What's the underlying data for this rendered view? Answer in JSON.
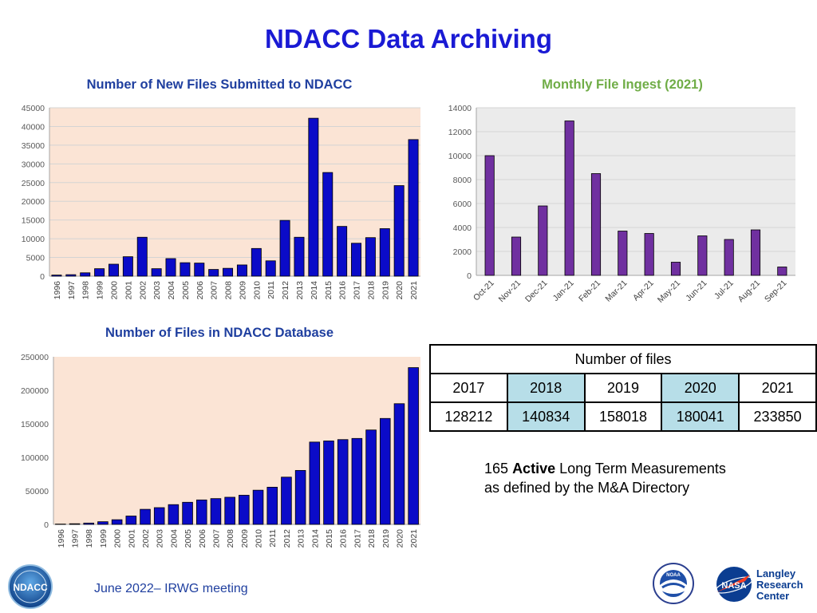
{
  "page": {
    "title": "NDACC Data Archiving"
  },
  "chart_data": [
    {
      "type": "bar",
      "title": "Number of New Files Submitted to NDACC",
      "title_color": "#1f3f9f",
      "xlabel": "",
      "ylabel": "",
      "ylim": [
        0,
        45000
      ],
      "yticks": [
        0,
        5000,
        10000,
        15000,
        20000,
        25000,
        30000,
        35000,
        40000,
        45000
      ],
      "grid": true,
      "plot_background": "#fbe4d5",
      "bar_color": "#0b0bc8",
      "categories": [
        "1996",
        "1997",
        "1998",
        "1999",
        "2000",
        "2001",
        "2002",
        "2003",
        "2004",
        "2005",
        "2006",
        "2007",
        "2008",
        "2009",
        "2010",
        "2011",
        "2012",
        "2013",
        "2014",
        "2015",
        "2016",
        "2017",
        "2018",
        "2019",
        "2020",
        "2021"
      ],
      "values": [
        300,
        400,
        900,
        2000,
        3200,
        5200,
        10400,
        2000,
        4700,
        3600,
        3500,
        1800,
        2100,
        3000,
        7400,
        4100,
        14900,
        10400,
        42200,
        27700,
        13300,
        8800,
        10300,
        12700,
        24200,
        36500
      ]
    },
    {
      "type": "bar",
      "title": "Monthly File Ingest (2021)",
      "title_color": "#70ad47",
      "xlabel": "",
      "ylabel": "",
      "ylim": [
        0,
        14000
      ],
      "yticks": [
        0,
        2000,
        4000,
        6000,
        8000,
        10000,
        12000,
        14000
      ],
      "grid": true,
      "plot_background": "#ebebeb",
      "bar_color": "#7030a0",
      "categories": [
        "Oct-21",
        "Nov-21",
        "Dec-21",
        "Jan-21",
        "Feb-21",
        "Mar-21",
        "Apr-21",
        "May-21",
        "Jun-21",
        "Jul-21",
        "Aug-21",
        "Sep-21"
      ],
      "values": [
        10000,
        3200,
        5800,
        12900,
        8500,
        3700,
        3500,
        1100,
        3300,
        3000,
        3800,
        700
      ]
    },
    {
      "type": "bar",
      "title": "Number of Files in NDACC Database",
      "title_color": "#1f3f9f",
      "xlabel": "",
      "ylabel": "",
      "ylim": [
        0,
        250000
      ],
      "yticks": [
        0,
        50000,
        100000,
        150000,
        200000,
        250000
      ],
      "grid": false,
      "plot_background": "#fbe4d5",
      "bar_color": "#0b0bc8",
      "categories": [
        "1996",
        "1997",
        "1998",
        "1999",
        "2000",
        "2001",
        "2002",
        "2003",
        "2004",
        "2005",
        "2006",
        "2007",
        "2008",
        "2009",
        "2010",
        "2011",
        "2012",
        "2013",
        "2014",
        "2015",
        "2016",
        "2017",
        "2018",
        "2019",
        "2020",
        "2021"
      ],
      "values": [
        500,
        1000,
        2000,
        4000,
        7000,
        12500,
        22500,
        25000,
        29500,
        33000,
        36500,
        38500,
        40500,
        43500,
        51000,
        55500,
        70500,
        80500,
        122800,
        124500,
        126500,
        128212,
        140834,
        158018,
        180041,
        233850
      ]
    }
  ],
  "table": {
    "header": "Number of files",
    "years": [
      "2017",
      "2018",
      "2019",
      "2020",
      "2021"
    ],
    "counts": [
      "128212",
      "140834",
      "158018",
      "180041",
      "233850"
    ],
    "highlight_color": "#b7dee8"
  },
  "note": {
    "count": "165",
    "bold_word": "Active",
    "line1_rest": "Long Term Measurements",
    "line2": "as defined by the M&A Directory"
  },
  "footer": {
    "text": "June 2022– IRWG meeting"
  },
  "logos": {
    "ndacc": "NDACC",
    "noaa_label": "NOAA",
    "nasa_label": "NASA",
    "langley_line1": "Langley",
    "langley_line2": "Research",
    "langley_line3": "Center"
  }
}
